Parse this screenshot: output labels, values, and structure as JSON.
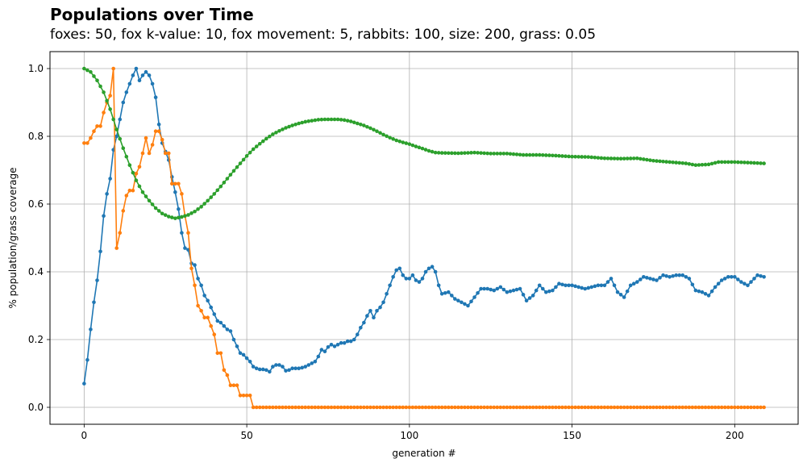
{
  "chart_data": {
    "type": "line",
    "title": "Populations over Time",
    "subtitle": "foxes: 50, fox k-value: 10, fox movement: 5, rabbits: 100, size: 200, grass: 0.05",
    "xlabel": "generation #",
    "ylabel": "% population/grass coverage",
    "xlim": [
      -10.5,
      219.5
    ],
    "ylim": [
      -0.05,
      1.05
    ],
    "xticks": [
      0,
      50,
      100,
      150,
      200
    ],
    "yticks": [
      0.0,
      0.2,
      0.4,
      0.6,
      0.8,
      1.0
    ],
    "xtick_labels": [
      "0",
      "50",
      "100",
      "150",
      "200"
    ],
    "ytick_labels": [
      "0.0",
      "0.2",
      "0.4",
      "0.6",
      "0.8",
      "1.0"
    ],
    "grid": true,
    "series": [
      {
        "color": "#1f77b4",
        "keypoints": [
          [
            0,
            0.07
          ],
          [
            1,
            0.14
          ],
          [
            2,
            0.23
          ],
          [
            3,
            0.31
          ],
          [
            4,
            0.375
          ],
          [
            5,
            0.46
          ],
          [
            6,
            0.565
          ],
          [
            7,
            0.63
          ],
          [
            8,
            0.675
          ],
          [
            9,
            0.76
          ],
          [
            10,
            0.8
          ],
          [
            11,
            0.85
          ],
          [
            12,
            0.9
          ],
          [
            13,
            0.93
          ],
          [
            14,
            0.955
          ],
          [
            15,
            0.98
          ],
          [
            16,
            1.0
          ],
          [
            17,
            0.965
          ],
          [
            18,
            0.98
          ],
          [
            19,
            0.99
          ],
          [
            20,
            0.98
          ],
          [
            21,
            0.955
          ],
          [
            22,
            0.915
          ],
          [
            23,
            0.835
          ],
          [
            24,
            0.78
          ],
          [
            25,
            0.755
          ],
          [
            26,
            0.73
          ],
          [
            27,
            0.68
          ],
          [
            28,
            0.635
          ],
          [
            29,
            0.585
          ],
          [
            30,
            0.515
          ],
          [
            31,
            0.47
          ],
          [
            32,
            0.465
          ],
          [
            33,
            0.425
          ],
          [
            34,
            0.42
          ],
          [
            35,
            0.38
          ],
          [
            36,
            0.36
          ],
          [
            37,
            0.33
          ],
          [
            38,
            0.315
          ],
          [
            39,
            0.295
          ],
          [
            40,
            0.275
          ],
          [
            41,
            0.255
          ],
          [
            42,
            0.25
          ],
          [
            43,
            0.24
          ],
          [
            44,
            0.23
          ],
          [
            45,
            0.225
          ],
          [
            46,
            0.2
          ],
          [
            47,
            0.18
          ],
          [
            48,
            0.16
          ],
          [
            49,
            0.155
          ],
          [
            50,
            0.145
          ],
          [
            51,
            0.135
          ],
          [
            52,
            0.12
          ],
          [
            53,
            0.115
          ],
          [
            54,
            0.112
          ],
          [
            55,
            0.112
          ],
          [
            56,
            0.11
          ],
          [
            57,
            0.105
          ],
          [
            58,
            0.12
          ],
          [
            59,
            0.125
          ],
          [
            60,
            0.125
          ],
          [
            61,
            0.12
          ],
          [
            62,
            0.108
          ],
          [
            63,
            0.11
          ],
          [
            64,
            0.115
          ],
          [
            65,
            0.115
          ],
          [
            66,
            0.115
          ],
          [
            67,
            0.117
          ],
          [
            68,
            0.12
          ],
          [
            69,
            0.125
          ],
          [
            70,
            0.13
          ],
          [
            71,
            0.135
          ],
          [
            72,
            0.15
          ],
          [
            73,
            0.17
          ],
          [
            74,
            0.165
          ],
          [
            75,
            0.178
          ],
          [
            76,
            0.185
          ],
          [
            77,
            0.18
          ],
          [
            78,
            0.185
          ],
          [
            79,
            0.19
          ],
          [
            80,
            0.19
          ],
          [
            81,
            0.195
          ],
          [
            82,
            0.195
          ],
          [
            83,
            0.2
          ],
          [
            84,
            0.215
          ],
          [
            85,
            0.235
          ],
          [
            86,
            0.25
          ],
          [
            87,
            0.27
          ],
          [
            88,
            0.285
          ],
          [
            89,
            0.265
          ],
          [
            90,
            0.285
          ],
          [
            91,
            0.295
          ],
          [
            92,
            0.31
          ],
          [
            93,
            0.335
          ],
          [
            94,
            0.36
          ],
          [
            95,
            0.385
          ],
          [
            96,
            0.405
          ],
          [
            97,
            0.41
          ],
          [
            98,
            0.39
          ],
          [
            99,
            0.38
          ],
          [
            100,
            0.38
          ],
          [
            101,
            0.39
          ],
          [
            102,
            0.375
          ],
          [
            103,
            0.37
          ],
          [
            104,
            0.38
          ],
          [
            105,
            0.4
          ],
          [
            106,
            0.41
          ],
          [
            107,
            0.415
          ],
          [
            108,
            0.4
          ],
          [
            109,
            0.36
          ],
          [
            110,
            0.335
          ],
          [
            112,
            0.34
          ],
          [
            114,
            0.32
          ],
          [
            116,
            0.31
          ],
          [
            118,
            0.3
          ],
          [
            120,
            0.325
          ],
          [
            122,
            0.35
          ],
          [
            124,
            0.35
          ],
          [
            126,
            0.345
          ],
          [
            128,
            0.355
          ],
          [
            130,
            0.34
          ],
          [
            132,
            0.345
          ],
          [
            134,
            0.35
          ],
          [
            136,
            0.315
          ],
          [
            138,
            0.33
          ],
          [
            140,
            0.36
          ],
          [
            142,
            0.34
          ],
          [
            144,
            0.345
          ],
          [
            146,
            0.365
          ],
          [
            148,
            0.36
          ],
          [
            150,
            0.36
          ],
          [
            152,
            0.355
          ],
          [
            154,
            0.35
          ],
          [
            156,
            0.355
          ],
          [
            158,
            0.36
          ],
          [
            160,
            0.36
          ],
          [
            162,
            0.38
          ],
          [
            164,
            0.34
          ],
          [
            166,
            0.325
          ],
          [
            168,
            0.36
          ],
          [
            170,
            0.37
          ],
          [
            172,
            0.385
          ],
          [
            174,
            0.38
          ],
          [
            176,
            0.375
          ],
          [
            178,
            0.39
          ],
          [
            180,
            0.385
          ],
          [
            182,
            0.39
          ],
          [
            184,
            0.39
          ],
          [
            186,
            0.38
          ],
          [
            188,
            0.345
          ],
          [
            190,
            0.34
          ],
          [
            192,
            0.33
          ],
          [
            194,
            0.355
          ],
          [
            196,
            0.375
          ],
          [
            198,
            0.385
          ],
          [
            200,
            0.385
          ],
          [
            202,
            0.37
          ],
          [
            204,
            0.36
          ],
          [
            206,
            0.38
          ],
          [
            207,
            0.39
          ],
          [
            209,
            0.385
          ]
        ]
      },
      {
        "color": "#ff7f0e",
        "keypoints": [
          [
            0,
            0.78
          ],
          [
            1,
            0.78
          ],
          [
            2,
            0.795
          ],
          [
            3,
            0.815
          ],
          [
            4,
            0.83
          ],
          [
            5,
            0.83
          ],
          [
            6,
            0.87
          ],
          [
            7,
            0.9
          ],
          [
            8,
            0.92
          ],
          [
            9,
            1.0
          ],
          [
            10,
            0.47
          ],
          [
            11,
            0.515
          ],
          [
            12,
            0.58
          ],
          [
            13,
            0.625
          ],
          [
            14,
            0.64
          ],
          [
            15,
            0.64
          ],
          [
            16,
            0.69
          ],
          [
            17,
            0.71
          ],
          [
            18,
            0.75
          ],
          [
            19,
            0.795
          ],
          [
            20,
            0.75
          ],
          [
            21,
            0.775
          ],
          [
            22,
            0.815
          ],
          [
            23,
            0.815
          ],
          [
            24,
            0.79
          ],
          [
            25,
            0.75
          ],
          [
            26,
            0.75
          ],
          [
            27,
            0.66
          ],
          [
            28,
            0.66
          ],
          [
            29,
            0.66
          ],
          [
            30,
            0.63
          ],
          [
            31,
            0.565
          ],
          [
            32,
            0.515
          ],
          [
            33,
            0.41
          ],
          [
            34,
            0.36
          ],
          [
            35,
            0.3
          ],
          [
            36,
            0.285
          ],
          [
            37,
            0.265
          ],
          [
            38,
            0.265
          ],
          [
            39,
            0.24
          ],
          [
            40,
            0.215
          ],
          [
            41,
            0.16
          ],
          [
            42,
            0.16
          ],
          [
            43,
            0.11
          ],
          [
            44,
            0.095
          ],
          [
            45,
            0.065
          ],
          [
            46,
            0.065
          ],
          [
            47,
            0.065
          ],
          [
            48,
            0.035
          ],
          [
            49,
            0.035
          ],
          [
            50,
            0.035
          ],
          [
            51,
            0.035
          ],
          [
            52,
            0.0
          ],
          [
            209,
            0.0
          ]
        ]
      },
      {
        "color": "#2ca02c",
        "keypoints": [
          [
            0,
            1.0
          ],
          [
            2,
            0.99
          ],
          [
            4,
            0.965
          ],
          [
            6,
            0.93
          ],
          [
            8,
            0.88
          ],
          [
            10,
            0.82
          ],
          [
            12,
            0.765
          ],
          [
            14,
            0.715
          ],
          [
            16,
            0.67
          ],
          [
            18,
            0.635
          ],
          [
            20,
            0.61
          ],
          [
            22,
            0.588
          ],
          [
            24,
            0.572
          ],
          [
            26,
            0.563
          ],
          [
            28,
            0.558
          ],
          [
            30,
            0.562
          ],
          [
            32,
            0.568
          ],
          [
            34,
            0.578
          ],
          [
            36,
            0.592
          ],
          [
            38,
            0.61
          ],
          [
            40,
            0.63
          ],
          [
            42,
            0.652
          ],
          [
            44,
            0.675
          ],
          [
            46,
            0.698
          ],
          [
            48,
            0.72
          ],
          [
            50,
            0.742
          ],
          [
            52,
            0.762
          ],
          [
            54,
            0.778
          ],
          [
            56,
            0.793
          ],
          [
            58,
            0.806
          ],
          [
            60,
            0.816
          ],
          [
            62,
            0.825
          ],
          [
            64,
            0.832
          ],
          [
            66,
            0.838
          ],
          [
            68,
            0.843
          ],
          [
            70,
            0.846
          ],
          [
            72,
            0.849
          ],
          [
            74,
            0.85
          ],
          [
            76,
            0.85
          ],
          [
            78,
            0.85
          ],
          [
            80,
            0.848
          ],
          [
            82,
            0.844
          ],
          [
            84,
            0.838
          ],
          [
            86,
            0.832
          ],
          [
            88,
            0.824
          ],
          [
            90,
            0.815
          ],
          [
            92,
            0.805
          ],
          [
            94,
            0.796
          ],
          [
            96,
            0.788
          ],
          [
            98,
            0.782
          ],
          [
            100,
            0.777
          ],
          [
            102,
            0.77
          ],
          [
            104,
            0.764
          ],
          [
            106,
            0.757
          ],
          [
            108,
            0.752
          ],
          [
            110,
            0.751
          ],
          [
            115,
            0.75
          ],
          [
            120,
            0.752
          ],
          [
            125,
            0.749
          ],
          [
            130,
            0.749
          ],
          [
            135,
            0.745
          ],
          [
            140,
            0.745
          ],
          [
            145,
            0.743
          ],
          [
            150,
            0.74
          ],
          [
            155,
            0.739
          ],
          [
            160,
            0.735
          ],
          [
            165,
            0.734
          ],
          [
            170,
            0.735
          ],
          [
            175,
            0.728
          ],
          [
            180,
            0.724
          ],
          [
            185,
            0.72
          ],
          [
            188,
            0.715
          ],
          [
            192,
            0.717
          ],
          [
            195,
            0.724
          ],
          [
            200,
            0.724
          ],
          [
            205,
            0.722
          ],
          [
            209,
            0.72
          ]
        ]
      }
    ]
  }
}
